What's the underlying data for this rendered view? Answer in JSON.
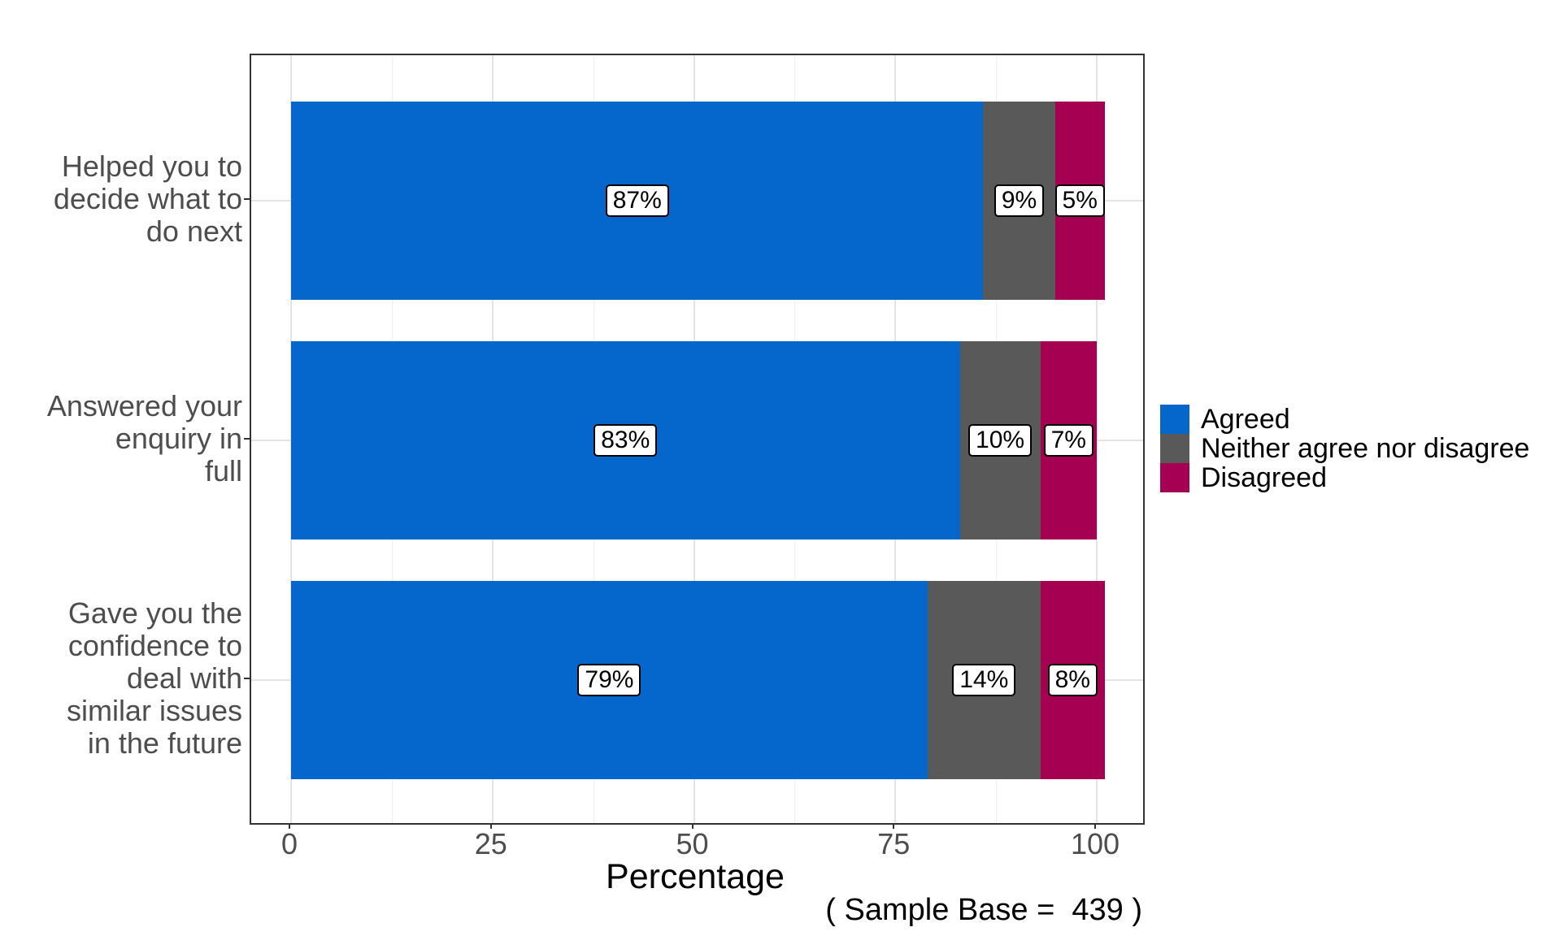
{
  "chart_data": {
    "type": "bar",
    "orientation": "horizontal-stacked",
    "title": "",
    "xlabel": "Percentage",
    "caption": "( Sample Base =  439 )",
    "xlim": [
      0,
      100
    ],
    "x_ticks": [
      0,
      25,
      50,
      75,
      100
    ],
    "x_minor_ticks": [
      12.5,
      37.5,
      62.5,
      87.5
    ],
    "grid": "on",
    "legend_position": "right",
    "categories": [
      "Helped you to decide what to do next",
      "Answered your enquiry in full",
      "Gave you the confidence to deal with similar issues in the future"
    ],
    "category_label_lines": [
      [
        "Helped you to",
        "decide what to",
        "do next"
      ],
      [
        "Answered your",
        "enquiry in",
        "full"
      ],
      [
        "Gave you the",
        "confidence to",
        "deal with",
        "similar issues",
        "in the future"
      ]
    ],
    "series": [
      {
        "name": "Agreed",
        "color": "#0566CB",
        "values": [
          87,
          83,
          79
        ]
      },
      {
        "name": "Neither agree nor disagree",
        "color": "#595959",
        "values": [
          9,
          10,
          14
        ]
      },
      {
        "name": "Disagreed",
        "color": "#A50051",
        "values": [
          5,
          7,
          8
        ]
      }
    ],
    "bar_labels": [
      [
        "87%",
        "9%",
        "5%"
      ],
      [
        "83%",
        "10%",
        "7%"
      ],
      [
        "79%",
        "14%",
        "8%"
      ]
    ],
    "colors": {
      "agreed": "#0566CB",
      "neither": "#595959",
      "disagreed": "#A50051",
      "grid_major": "#e4e4e4",
      "grid_minor": "#f0f0f0",
      "panel_border": "#333333",
      "axis_text": "#4d4d4d",
      "label_box_border": "#000000",
      "label_box_fill": "#ffffff"
    }
  }
}
